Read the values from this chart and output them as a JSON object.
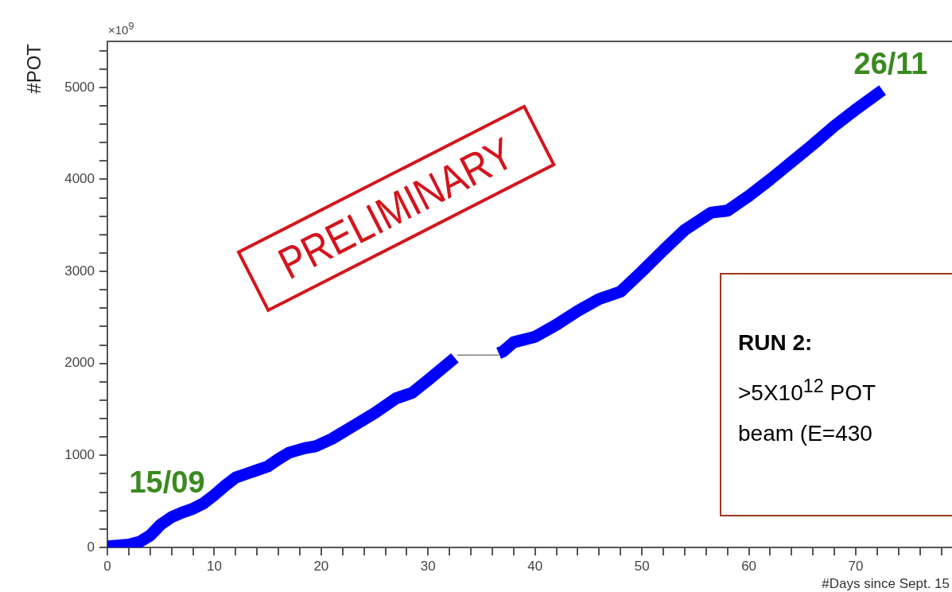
{
  "chart_data": {
    "type": "line",
    "xlabel": "#Days since Sept. 15",
    "ylabel": "#POT",
    "annotations": [
      "15/09",
      "26/11",
      "×10$^{9}$",
      "PRELIMINARY",
      "RUN 2:",
      ">5X10$^{12}$ POT",
      "beam (E=430"
    ],
    "series": [
      {
        "color": "#0000ff",
        "x": [
          0,
          2,
          3,
          4,
          5,
          6,
          7,
          8,
          9,
          10,
          11,
          12,
          13,
          14,
          15,
          16,
          17,
          18.5,
          19.5,
          21,
          23,
          25,
          27,
          28.5,
          30,
          32.5,
          34.5,
          36.6,
          37,
          38,
          40,
          42,
          44,
          46,
          48,
          50,
          52,
          54,
          56.5,
          58,
          60,
          62,
          64,
          66,
          68,
          70,
          72.5
        ],
        "values": [
          10,
          30,
          60,
          130,
          250,
          330,
          380,
          420,
          480,
          570,
          670,
          760,
          800,
          840,
          880,
          960,
          1030,
          1080,
          1100,
          1180,
          1320,
          1460,
          1620,
          1680,
          1820,
          2060,
          null,
          2110,
          2130,
          2230,
          2290,
          2420,
          2570,
          2700,
          2780,
          3000,
          3230,
          3450,
          3640,
          3660,
          3820,
          4000,
          4190,
          4380,
          4580,
          4760,
          4970
        ]
      },
      {
        "color": "#808080",
        "x": [
          32.7,
          36.6
        ],
        "values": [
          2090,
          2090
        ]
      }
    ],
    "xlim": [
      0,
      79
    ],
    "xticks": [
      0,
      {
        "value": 2,
        "label": null
      },
      {
        "value": 4,
        "label": null
      },
      {
        "value": 6,
        "label": null
      },
      {
        "value": 8,
        "label": null
      },
      10,
      {
        "value": 12,
        "label": null
      },
      {
        "value": 14,
        "label": null
      },
      {
        "value": 16,
        "label": null
      },
      {
        "value": 18,
        "label": null
      },
      20,
      {
        "value": 22,
        "label": null
      },
      {
        "value": 24,
        "label": null
      },
      {
        "value": 26,
        "label": null
      },
      {
        "value": 28,
        "label": null
      },
      30,
      {
        "value": 32,
        "label": null
      },
      {
        "value": 34,
        "label": null
      },
      {
        "value": 36,
        "label": null
      },
      {
        "value": 38,
        "label": null
      },
      40,
      {
        "value": 42,
        "label": null
      },
      {
        "value": 44,
        "label": null
      },
      {
        "value": 46,
        "label": null
      },
      {
        "value": 48,
        "label": null
      },
      50,
      {
        "value": 52,
        "label": null
      },
      {
        "value": 54,
        "label": null
      },
      {
        "value": 56,
        "label": null
      },
      {
        "value": 58,
        "label": null
      },
      60,
      {
        "value": 62,
        "label": null
      },
      {
        "value": 64,
        "label": null
      },
      {
        "value": 66,
        "label": null
      },
      {
        "value": 68,
        "label": null
      },
      70,
      {
        "value": 72,
        "label": null
      },
      {
        "value": 74,
        "label": null
      },
      {
        "value": 76,
        "label": null
      },
      {
        "value": 78,
        "label": null
      }
    ],
    "ylim": [
      0,
      5500
    ],
    "yticks": [
      0,
      {
        "value": 200,
        "label": null
      },
      {
        "value": 400,
        "label": null
      },
      {
        "value": 600,
        "label": null
      },
      {
        "value": 800,
        "label": null
      },
      1000,
      {
        "value": 1200,
        "label": null
      },
      {
        "value": 1400,
        "label": null
      },
      {
        "value": 1600,
        "label": null
      },
      {
        "value": 1800,
        "label": null
      },
      2000,
      {
        "value": 2200,
        "label": null
      },
      {
        "value": 2400,
        "label": null
      },
      {
        "value": 2600,
        "label": null
      },
      {
        "value": 2800,
        "label": null
      },
      3000,
      {
        "value": 3200,
        "label": null
      },
      {
        "value": 3400,
        "label": null
      },
      {
        "value": 3600,
        "label": null
      },
      {
        "value": 3800,
        "label": null
      },
      4000,
      {
        "value": 4200,
        "label": null
      },
      {
        "value": 4400,
        "label": null
      },
      {
        "value": 4600,
        "label": null
      },
      {
        "value": 4800,
        "label": null
      },
      5000,
      {
        "value": 5200,
        "label": null
      },
      {
        "value": 5400,
        "label": null
      }
    ]
  }
}
